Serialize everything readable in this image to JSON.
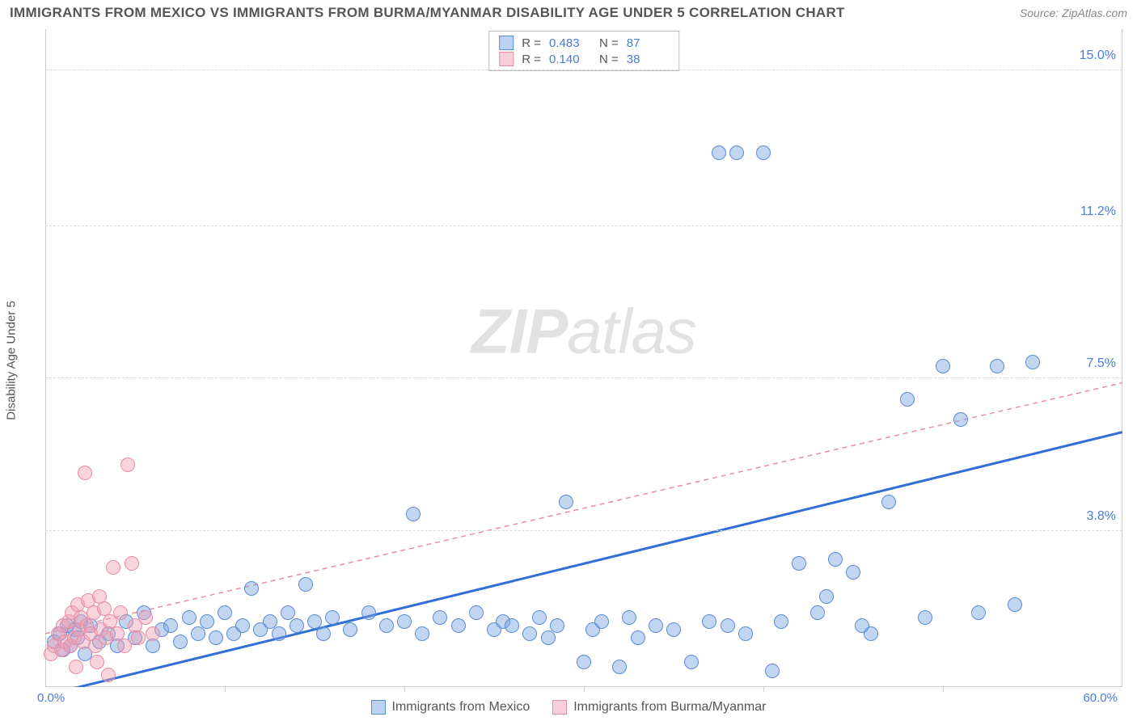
{
  "title": "IMMIGRANTS FROM MEXICO VS IMMIGRANTS FROM BURMA/MYANMAR DISABILITY AGE UNDER 5 CORRELATION CHART",
  "source": "Source: ZipAtlas.com",
  "y_axis_title": "Disability Age Under 5",
  "watermark_a": "ZIP",
  "watermark_b": "atlas",
  "chart": {
    "type": "scatter",
    "xlim": [
      0,
      60
    ],
    "ylim": [
      0,
      16
    ],
    "y_ticks": [
      {
        "v": 3.8,
        "label": "3.8%"
      },
      {
        "v": 7.5,
        "label": "7.5%"
      },
      {
        "v": 11.2,
        "label": "11.2%"
      },
      {
        "v": 15.0,
        "label": "15.0%"
      }
    ],
    "x_ticks": [
      10,
      20,
      30,
      40,
      50
    ],
    "origin_label": "0.0%",
    "xmax_label": "60.0%",
    "background_color": "#ffffff",
    "grid_color": "#d8d8d8",
    "marker_radius": 9,
    "series": [
      {
        "name": "Immigrants from Mexico",
        "color_fill": "rgba(120,165,225,0.45)",
        "color_stroke": "#5b8cd6",
        "r": "0.483",
        "n": "87",
        "trend": {
          "x1": 0,
          "y1": -0.2,
          "x2": 60,
          "y2": 6.2,
          "stroke": "#2f6fd6",
          "width": 3,
          "dash": "none"
        },
        "points": [
          [
            0.5,
            1.1
          ],
          [
            0.8,
            1.3
          ],
          [
            1.0,
            0.9
          ],
          [
            1.2,
            1.5
          ],
          [
            1.4,
            1.0
          ],
          [
            1.6,
            1.4
          ],
          [
            1.8,
            1.2
          ],
          [
            2.0,
            1.6
          ],
          [
            2.2,
            0.8
          ],
          [
            2.5,
            1.5
          ],
          [
            3.0,
            1.1
          ],
          [
            3.5,
            1.3
          ],
          [
            4.0,
            1.0
          ],
          [
            4.5,
            1.6
          ],
          [
            5.0,
            1.2
          ],
          [
            5.5,
            1.8
          ],
          [
            6.0,
            1.0
          ],
          [
            6.5,
            1.4
          ],
          [
            7.0,
            1.5
          ],
          [
            7.5,
            1.1
          ],
          [
            8.0,
            1.7
          ],
          [
            8.5,
            1.3
          ],
          [
            9.0,
            1.6
          ],
          [
            9.5,
            1.2
          ],
          [
            10.0,
            1.8
          ],
          [
            10.5,
            1.3
          ],
          [
            11.0,
            1.5
          ],
          [
            11.5,
            2.4
          ],
          [
            12.0,
            1.4
          ],
          [
            12.5,
            1.6
          ],
          [
            13.0,
            1.3
          ],
          [
            13.5,
            1.8
          ],
          [
            14.0,
            1.5
          ],
          [
            14.5,
            2.5
          ],
          [
            15.0,
            1.6
          ],
          [
            15.5,
            1.3
          ],
          [
            16.0,
            1.7
          ],
          [
            17.0,
            1.4
          ],
          [
            18.0,
            1.8
          ],
          [
            19.0,
            1.5
          ],
          [
            20.0,
            1.6
          ],
          [
            20.5,
            4.2
          ],
          [
            21.0,
            1.3
          ],
          [
            22.0,
            1.7
          ],
          [
            23.0,
            1.5
          ],
          [
            24.0,
            1.8
          ],
          [
            25.0,
            1.4
          ],
          [
            25.5,
            1.6
          ],
          [
            26.0,
            1.5
          ],
          [
            27.0,
            1.3
          ],
          [
            27.5,
            1.7
          ],
          [
            28.0,
            1.2
          ],
          [
            28.5,
            1.5
          ],
          [
            29.0,
            4.5
          ],
          [
            30.0,
            0.6
          ],
          [
            30.5,
            1.4
          ],
          [
            31.0,
            1.6
          ],
          [
            32.0,
            0.5
          ],
          [
            32.5,
            1.7
          ],
          [
            33.0,
            1.2
          ],
          [
            34.0,
            1.5
          ],
          [
            35.0,
            1.4
          ],
          [
            36.0,
            0.6
          ],
          [
            37.0,
            1.6
          ],
          [
            37.5,
            13.0
          ],
          [
            38.5,
            13.0
          ],
          [
            40.0,
            13.0
          ],
          [
            38.0,
            1.5
          ],
          [
            39.0,
            1.3
          ],
          [
            40.5,
            0.4
          ],
          [
            41.0,
            1.6
          ],
          [
            42.0,
            3.0
          ],
          [
            43.0,
            1.8
          ],
          [
            44.0,
            3.1
          ],
          [
            45.0,
            2.8
          ],
          [
            46.0,
            1.3
          ],
          [
            47.0,
            4.5
          ],
          [
            48.0,
            7.0
          ],
          [
            49.0,
            1.7
          ],
          [
            50.0,
            7.8
          ],
          [
            51.0,
            6.5
          ],
          [
            52.0,
            1.8
          ],
          [
            53.0,
            7.8
          ],
          [
            54.0,
            2.0
          ],
          [
            55.0,
            7.9
          ],
          [
            43.5,
            2.2
          ],
          [
            45.5,
            1.5
          ]
        ]
      },
      {
        "name": "Immigrants from Burma/Myanmar",
        "color_fill": "rgba(240,160,180,0.45)",
        "color_stroke": "#e88ca5",
        "r": "0.140",
        "n": "38",
        "trend": {
          "x1": 0,
          "y1": 1.3,
          "x2": 60,
          "y2": 7.4,
          "stroke": "#e88ca5",
          "width": 1.5,
          "dash": "6,5"
        },
        "points": [
          [
            0.3,
            0.8
          ],
          [
            0.5,
            1.0
          ],
          [
            0.7,
            1.3
          ],
          [
            0.9,
            0.9
          ],
          [
            1.0,
            1.5
          ],
          [
            1.1,
            1.1
          ],
          [
            1.3,
            1.6
          ],
          [
            1.4,
            1.0
          ],
          [
            1.5,
            1.8
          ],
          [
            1.6,
            1.2
          ],
          [
            1.8,
            2.0
          ],
          [
            1.9,
            1.4
          ],
          [
            2.0,
            1.7
          ],
          [
            2.1,
            1.1
          ],
          [
            2.3,
            1.5
          ],
          [
            2.4,
            2.1
          ],
          [
            2.5,
            1.3
          ],
          [
            2.7,
            1.8
          ],
          [
            2.8,
            1.0
          ],
          [
            3.0,
            2.2
          ],
          [
            3.1,
            1.4
          ],
          [
            3.3,
            1.9
          ],
          [
            3.4,
            1.2
          ],
          [
            3.6,
            1.6
          ],
          [
            3.8,
            2.9
          ],
          [
            4.0,
            1.3
          ],
          [
            4.2,
            1.8
          ],
          [
            4.4,
            1.0
          ],
          [
            4.8,
            3.0
          ],
          [
            5.0,
            1.5
          ],
          [
            5.2,
            1.2
          ],
          [
            5.6,
            1.7
          ],
          [
            6.0,
            1.3
          ],
          [
            2.2,
            5.2
          ],
          [
            4.6,
            5.4
          ],
          [
            3.5,
            0.3
          ],
          [
            1.7,
            0.5
          ],
          [
            2.9,
            0.6
          ]
        ]
      }
    ]
  },
  "legend": {
    "series1": "Immigrants from Mexico",
    "series2": "Immigrants from Burma/Myanmar"
  }
}
